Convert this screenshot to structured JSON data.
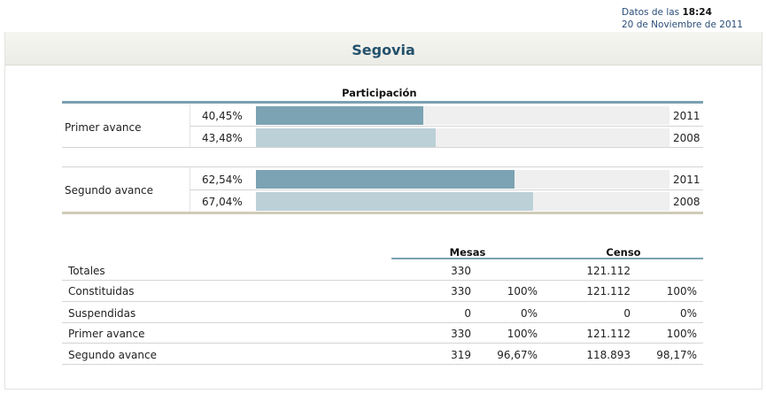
{
  "stamp": {
    "prefix": "Datos de las",
    "time": "18:24",
    "date": "20 de Noviembre de 2011"
  },
  "title": "Segovia",
  "participation": {
    "heading": "Participación",
    "groups": [
      {
        "label": "Primer avance",
        "rows": [
          {
            "pct_label": "40,45%",
            "value": 40.45,
            "year": "2011",
            "kind": "current"
          },
          {
            "pct_label": "43,48%",
            "value": 43.48,
            "year": "2008",
            "kind": "previous"
          }
        ]
      },
      {
        "label": "Segundo avance",
        "rows": [
          {
            "pct_label": "62,54%",
            "value": 62.54,
            "year": "2011",
            "kind": "current"
          },
          {
            "pct_label": "67,04%",
            "value": 67.04,
            "year": "2008",
            "kind": "previous"
          }
        ]
      }
    ],
    "colors": {
      "current": "#7ca3b3",
      "previous": "#bcd0d8",
      "track": "#efefef"
    }
  },
  "table": {
    "headers": {
      "mesas": "Mesas",
      "censo": "Censo"
    },
    "rows": [
      {
        "label": "Totales",
        "mesas": "330",
        "mesas_pct": "",
        "censo": "121.112",
        "censo_pct": ""
      },
      {
        "label": "Constituidas",
        "mesas": "330",
        "mesas_pct": "100%",
        "censo": "121.112",
        "censo_pct": "100%"
      },
      {
        "label": "Suspendidas",
        "mesas": "0",
        "mesas_pct": "0%",
        "censo": "0",
        "censo_pct": "0%"
      },
      {
        "label": "Primer avance",
        "mesas": "330",
        "mesas_pct": "100%",
        "censo": "121.112",
        "censo_pct": "100%"
      },
      {
        "label": "Segundo avance",
        "mesas": "319",
        "mesas_pct": "96,67%",
        "censo": "118.893",
        "censo_pct": "98,17%"
      }
    ]
  }
}
